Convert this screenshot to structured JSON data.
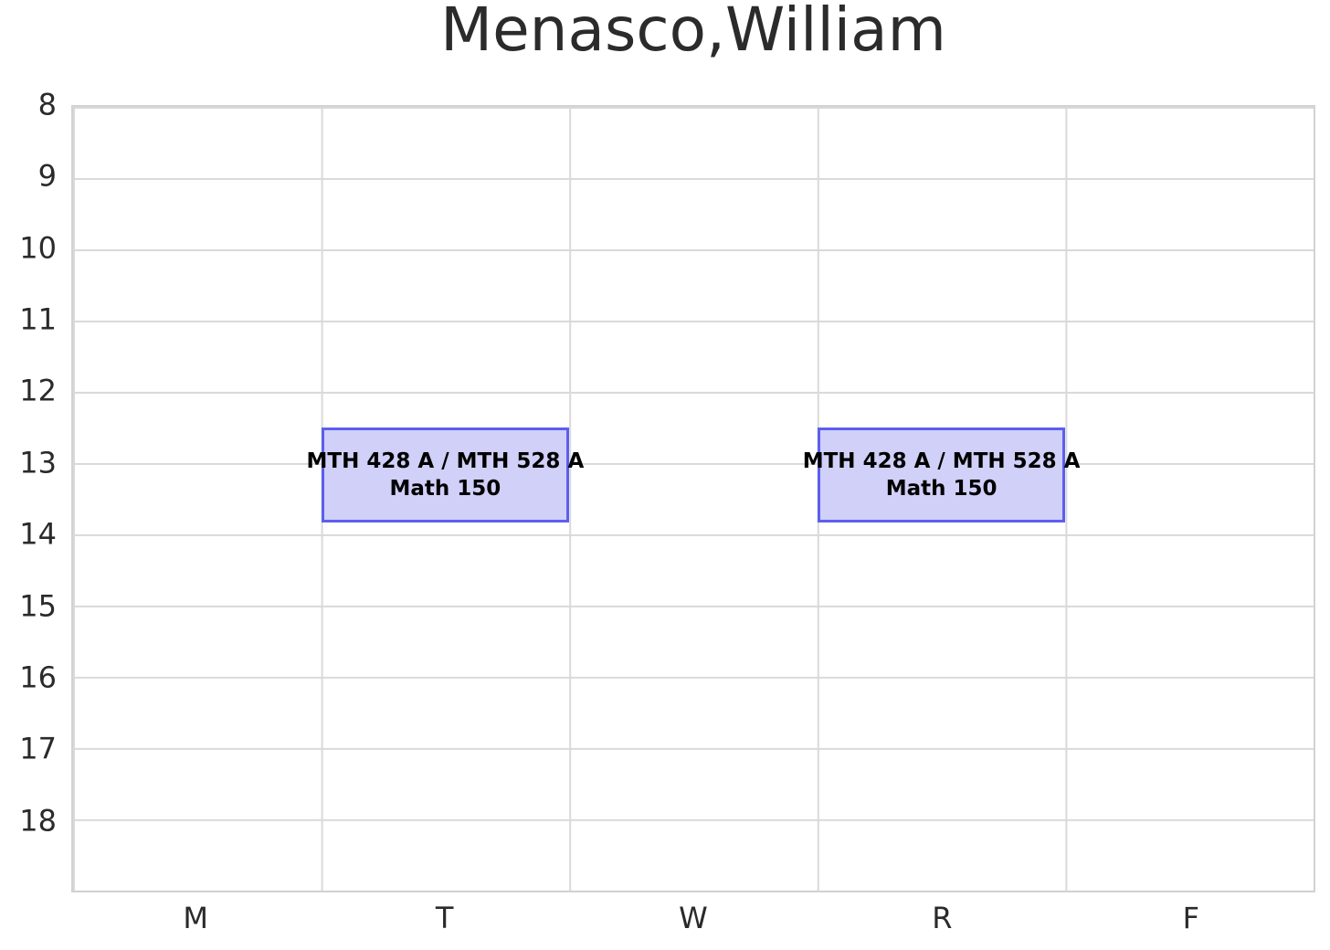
{
  "chart_data": {
    "type": "schedule",
    "title": "Menasco,William",
    "xlabel": "",
    "ylabel": "",
    "x_categories": [
      "M",
      "T",
      "W",
      "R",
      "F"
    ],
    "y_tick_labels": [
      "8",
      "9",
      "10",
      "11",
      "12",
      "13",
      "14",
      "15",
      "16",
      "17",
      "18"
    ],
    "y_ticks": [
      8,
      9,
      10,
      11,
      12,
      13,
      14,
      15,
      16,
      17,
      18
    ],
    "y_range": [
      8,
      19
    ],
    "y_axis_direction": "top-down",
    "grid": true,
    "legend": "none",
    "events": [
      {
        "day": "T",
        "start_hour": 12.5,
        "end_hour": 13.833,
        "label_line1": "MTH 428 A / MTH 528 A",
        "label_line2": "Math 150"
      },
      {
        "day": "R",
        "start_hour": 12.5,
        "end_hour": 13.833,
        "label_line1": "MTH 428 A / MTH 528 A",
        "label_line2": "Math 150"
      }
    ],
    "colors": {
      "event_fill": "#d0d0f8",
      "event_border": "#5b5fee",
      "grid_line": "#d9d9d9",
      "axis_border": "#d2d2d2",
      "tick_text": "#2a2a2a",
      "title_text": "#2b2b2b",
      "event_text": "#000000",
      "background": "#ffffff"
    }
  }
}
